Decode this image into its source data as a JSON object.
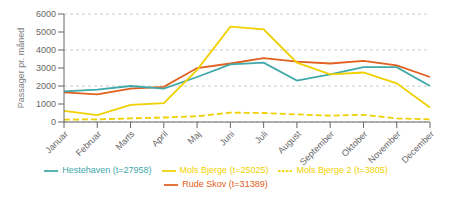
{
  "chart_data": {
    "type": "line",
    "ylabel": "Passager pr. måned",
    "categories": [
      "Januar",
      "Februar",
      "Marts",
      "April",
      "Maj",
      "Juni",
      "Juli",
      "August",
      "September",
      "Oktober",
      "November",
      "December"
    ],
    "series": [
      {
        "name": "Rude Skov (t=31389)",
        "color": "#e06020",
        "line_style": "solid",
        "values": [
          1650,
          1530,
          1850,
          1950,
          3000,
          3250,
          3550,
          3350,
          3250,
          3400,
          3150,
          2500
        ]
      },
      {
        "name": "Hestehaven (t=27958)",
        "color": "#40a8a8",
        "line_style": "solid",
        "values": [
          1700,
          1800,
          2000,
          1850,
          2500,
          3200,
          3300,
          2300,
          2650,
          3050,
          3050,
          2000
        ]
      },
      {
        "name": "Mols Bjerge (t=25025)",
        "color": "#f0d000",
        "line_style": "solid",
        "values": [
          620,
          380,
          950,
          1050,
          2900,
          5300,
          5150,
          3300,
          2650,
          2750,
          2150,
          800
        ]
      },
      {
        "name": "Mols Bjerge 2 (t=3805)",
        "color": "#f0d000",
        "line_style": "dashed",
        "values": [
          130,
          150,
          200,
          250,
          320,
          520,
          500,
          420,
          350,
          400,
          200,
          150
        ]
      }
    ],
    "ylim": [
      0,
      6000
    ],
    "yticks": [
      0,
      1000,
      2000,
      3000,
      4000,
      5000,
      6000
    ],
    "grid": true,
    "legend": "bottom"
  }
}
